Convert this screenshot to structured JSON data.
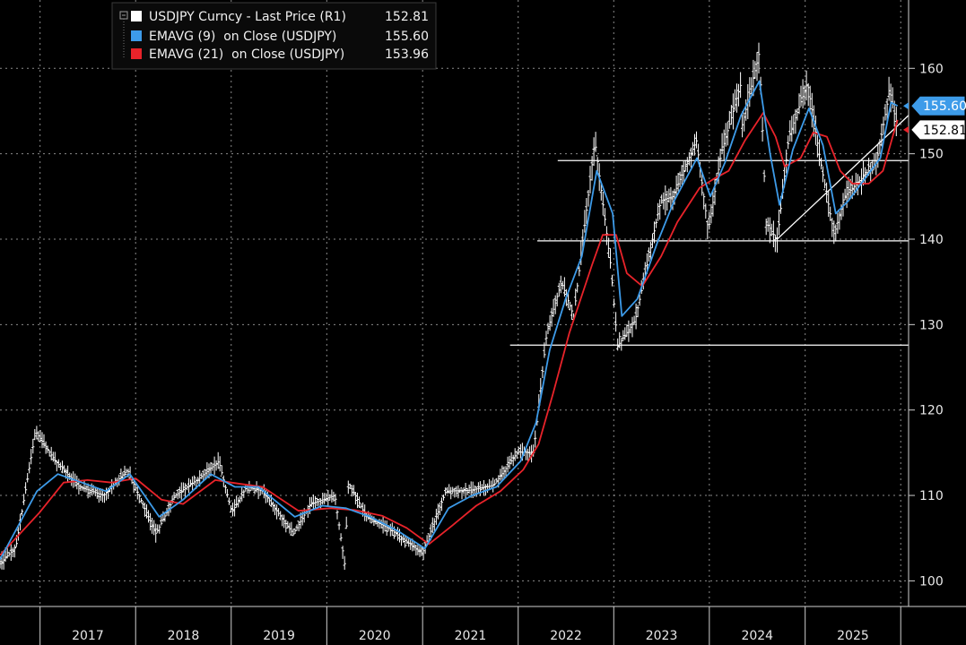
{
  "chart_data": {
    "type": "line",
    "legend": {
      "entries": [
        {
          "name": "USDJPY Curncy - Last Price (R1)",
          "value": "152.81",
          "color": "#ffffff"
        },
        {
          "name": "EMAVG (9)  on Close (USDJPY)",
          "value": "155.60",
          "color": "#3d9be9"
        },
        {
          "name": "EMAVG (21)  on Close (USDJPY)",
          "value": "153.96",
          "color": "#e8232a"
        }
      ],
      "placement": "top-left"
    },
    "y_axis": {
      "side": "right",
      "range": [
        97,
        168
      ],
      "ticks": [
        100,
        110,
        120,
        130,
        140,
        150,
        160
      ],
      "tick_labels": [
        "100",
        "110",
        "120",
        "130",
        "140",
        "150",
        "160"
      ]
    },
    "x_axis": {
      "range": [
        "2016-08-01",
        "2026-01-31"
      ],
      "year_labels": [
        "2017",
        "2018",
        "2019",
        "2020",
        "2021",
        "2022",
        "2023",
        "2024",
        "2025"
      ],
      "year_boundaries": [
        "2017-01-01",
        "2018-01-01",
        "2019-01-01",
        "2020-01-01",
        "2021-01-01",
        "2022-01-01",
        "2023-01-01",
        "2024-01-01",
        "2025-01-01",
        "2026-01-01"
      ]
    },
    "grid": true,
    "last_value_tags": [
      {
        "label": "155.60",
        "value": 155.6,
        "series": "EMAVG (9)  on Close (USDJPY)"
      },
      {
        "label": "152.81",
        "value": 152.81,
        "series": "USDJPY Curncy - Last Price (R1)"
      }
    ],
    "annotations": {
      "horizontal_levels": [
        {
          "value": 149.2,
          "from": "2022-06-01",
          "to": "2026-01-31"
        },
        {
          "value": 139.8,
          "from": "2022-03-15",
          "to": "2026-01-31"
        },
        {
          "value": 127.6,
          "from": "2021-12-01",
          "to": "2026-01-31"
        }
      ],
      "trend_line": {
        "from": {
          "date": "2024-09-16",
          "value": 140.0
        },
        "to": {
          "date": "2026-01-31",
          "value": 154.5
        }
      }
    },
    "series": [
      {
        "name": "USDJPY Curncy - Last Price (R1)",
        "x": [
          "2016-08-01",
          "2016-10-01",
          "2016-12-15",
          "2017-03-01",
          "2017-06-01",
          "2017-09-01",
          "2017-12-01",
          "2018-03-20",
          "2018-06-01",
          "2018-09-01",
          "2018-11-15",
          "2019-01-03",
          "2019-03-01",
          "2019-05-01",
          "2019-08-26",
          "2019-11-01",
          "2020-02-01",
          "2020-03-09",
          "2020-03-24",
          "2020-06-01",
          "2020-09-01",
          "2020-12-31",
          "2021-03-31",
          "2021-06-30",
          "2021-09-30",
          "2021-12-31",
          "2022-03-01",
          "2022-04-20",
          "2022-06-15",
          "2022-08-01",
          "2022-10-21",
          "2022-12-20",
          "2023-01-16",
          "2023-03-24",
          "2023-05-01",
          "2023-06-30",
          "2023-08-15",
          "2023-10-15",
          "2023-11-13",
          "2023-12-28",
          "2024-02-15",
          "2024-04-29",
          "2024-05-03",
          "2024-06-30",
          "2024-07-10",
          "2024-08-05",
          "2024-09-16",
          "2024-10-31",
          "2025-01-10",
          "2025-03-01",
          "2025-04-22",
          "2025-06-01",
          "2025-08-01",
          "2025-10-01",
          "2025-11-20",
          "2025-12-20"
        ],
        "y": [
          102,
          104,
          117.5,
          114,
          111,
          110,
          113,
          105.5,
          110,
          112,
          114,
          108,
          111,
          110.5,
          105.5,
          109,
          110,
          102,
          111.5,
          107.5,
          106,
          103.2,
          110.5,
          110.6,
          111.2,
          115.1,
          115,
          129,
          135,
          131,
          151.5,
          137,
          127.5,
          130.5,
          136,
          144.5,
          145,
          149.5,
          151.5,
          141,
          150,
          158,
          153,
          160.5,
          161.9,
          142,
          139.8,
          152,
          158.3,
          149,
          140.5,
          145,
          147,
          149,
          157.5,
          152.81
        ]
      },
      {
        "name": "EMAVG (9)  on Close (USDJPY)",
        "x": [
          "2016-08-01",
          "2016-12-20",
          "2017-03-10",
          "2017-06-10",
          "2017-09-10",
          "2017-12-10",
          "2018-04-01",
          "2018-07-01",
          "2018-10-15",
          "2019-01-15",
          "2019-04-15",
          "2019-09-01",
          "2019-12-15",
          "2020-03-15",
          "2020-06-15",
          "2020-10-01",
          "2021-01-10",
          "2021-04-10",
          "2021-07-10",
          "2021-10-10",
          "2022-01-10",
          "2022-03-10",
          "2022-05-01",
          "2022-07-01",
          "2022-09-01",
          "2022-10-28",
          "2022-12-28",
          "2023-02-01",
          "2023-04-01",
          "2023-06-15",
          "2023-08-20",
          "2023-11-15",
          "2024-01-05",
          "2024-03-01",
          "2024-05-01",
          "2024-07-10",
          "2024-08-20",
          "2024-09-25",
          "2024-11-15",
          "2025-01-15",
          "2025-03-10",
          "2025-04-28",
          "2025-06-15",
          "2025-08-15",
          "2025-10-15",
          "2025-11-25",
          "2025-12-20"
        ],
        "y": [
          102.5,
          110.5,
          112.5,
          111.5,
          110.5,
          112.5,
          107.5,
          109.5,
          112.5,
          111,
          111,
          107.5,
          108.8,
          108.5,
          107.5,
          105.8,
          103.8,
          108.5,
          110,
          111,
          114,
          118.5,
          127,
          133,
          138,
          148,
          143,
          131,
          133,
          139.5,
          144.5,
          149.5,
          145,
          149,
          154.5,
          158.5,
          150,
          144,
          150.5,
          155.3,
          151,
          143,
          144.5,
          147,
          149.5,
          156,
          155.6
        ]
      },
      {
        "name": "EMAVG (21)  on Close (USDJPY)",
        "x": [
          "2016-08-01",
          "2016-12-30",
          "2017-04-01",
          "2017-07-01",
          "2017-10-01",
          "2018-01-01",
          "2018-04-10",
          "2018-07-01",
          "2018-11-01",
          "2019-01-25",
          "2019-05-01",
          "2019-09-15",
          "2020-01-15",
          "2020-04-15",
          "2020-08-01",
          "2020-11-01",
          "2021-01-25",
          "2021-04-25",
          "2021-07-25",
          "2021-10-25",
          "2022-01-20",
          "2022-03-20",
          "2022-05-15",
          "2022-07-15",
          "2022-10-10",
          "2022-11-20",
          "2023-01-10",
          "2023-02-20",
          "2023-04-20",
          "2023-07-01",
          "2023-09-01",
          "2023-11-25",
          "2024-01-15",
          "2024-03-15",
          "2024-05-15",
          "2024-07-25",
          "2024-09-10",
          "2024-10-15",
          "2024-12-15",
          "2025-02-01",
          "2025-03-25",
          "2025-05-15",
          "2025-07-01",
          "2025-09-01",
          "2025-10-25",
          "2025-12-01",
          "2025-12-20"
        ],
        "y": [
          103,
          108,
          111.5,
          111.8,
          111.5,
          112,
          109.5,
          109,
          111.8,
          111.4,
          111,
          108.2,
          108.5,
          108.3,
          107.6,
          106.2,
          104.3,
          106.5,
          108.8,
          110.5,
          113,
          116,
          122,
          129,
          137,
          140.5,
          140.5,
          136,
          134.5,
          138,
          142,
          146,
          147,
          148,
          151.5,
          154.8,
          152,
          148.5,
          149.5,
          152.5,
          152,
          148,
          146.5,
          146.5,
          148,
          152,
          153.96
        ]
      }
    ]
  }
}
